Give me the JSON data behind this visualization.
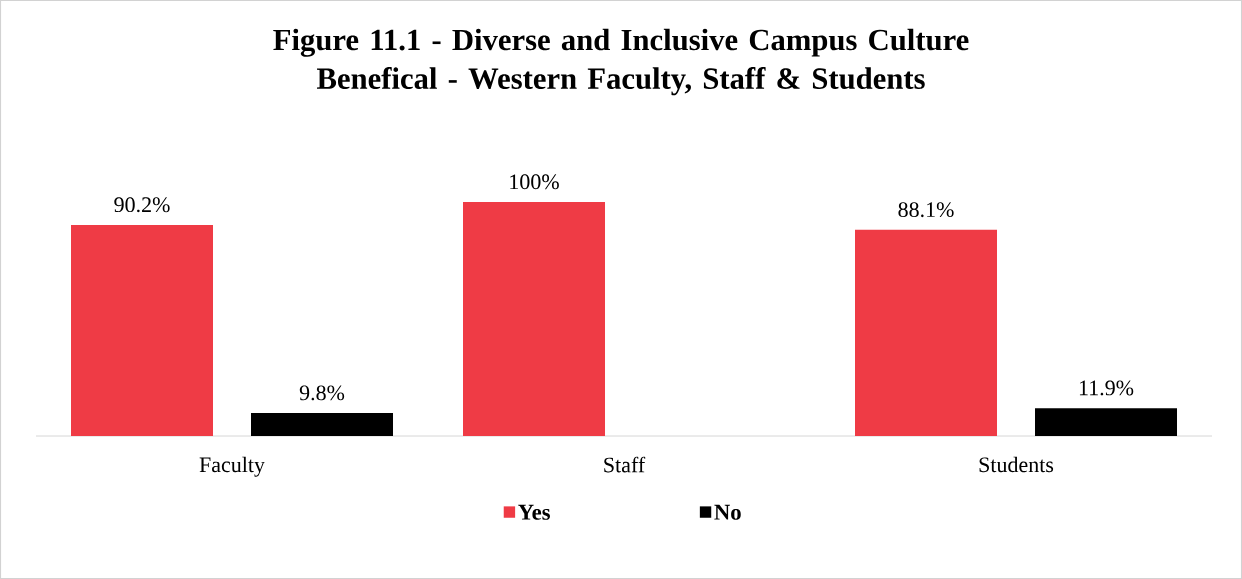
{
  "chart_data": {
    "type": "bar",
    "title": "Figure 11.1 - Diverse and Inclusive Campus Culture Benefical - Western Faculty, Staff & Students",
    "categories": [
      "Faculty",
      "Staff",
      "Students"
    ],
    "series": [
      {
        "name": "Yes",
        "color": "#ef3b45",
        "values": [
          90.2,
          100,
          88.1
        ],
        "value_labels": [
          "90.2%",
          "100%",
          "88.1%"
        ]
      },
      {
        "name": "No",
        "color": "#000000",
        "values": [
          9.8,
          null,
          11.9
        ],
        "value_labels": [
          "9.8%",
          null,
          "11.9%"
        ]
      }
    ],
    "ylim": [
      0,
      100
    ],
    "legend": "bottom"
  }
}
